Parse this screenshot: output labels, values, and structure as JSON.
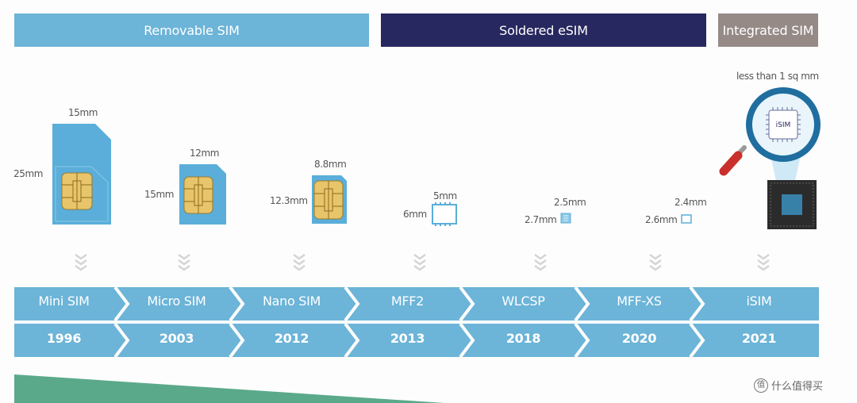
{
  "headers": {
    "removable": "Removable SIM",
    "soldered": "Soldered eSIM",
    "integrated": "Integrated SIM"
  },
  "colors": {
    "light_blue": "#6cb4d8",
    "navy": "#27285f",
    "gray": "#958a86",
    "card": "#5aaed9",
    "chip_gold": "#e8c56a",
    "green": "#5aa98a"
  },
  "dimensions": {
    "mini_w": "15mm",
    "mini_h": "25mm",
    "micro_w": "12mm",
    "micro_h": "15mm",
    "nano_w": "8.8mm",
    "nano_h": "12.3mm",
    "mff2_w": "5mm",
    "mff2_h": "6mm",
    "wlcsp_w": "2.5mm",
    "wlcsp_h": "2.7mm",
    "mffxs_w": "2.4mm",
    "mffxs_h": "2.6mm",
    "isim": "less than 1 sq mm"
  },
  "isim_chip_label": "iSIM",
  "timeline": [
    {
      "name": "Mini SIM",
      "year": "1996"
    },
    {
      "name": "Micro SIM",
      "year": "2003"
    },
    {
      "name": "Nano SIM",
      "year": "2012"
    },
    {
      "name": "MFF2",
      "year": "2013"
    },
    {
      "name": "WLCSP",
      "year": "2018"
    },
    {
      "name": "MFF-XS",
      "year": "2020"
    },
    {
      "name": "iSIM",
      "year": "2021"
    }
  ],
  "watermark": "什么值得买"
}
